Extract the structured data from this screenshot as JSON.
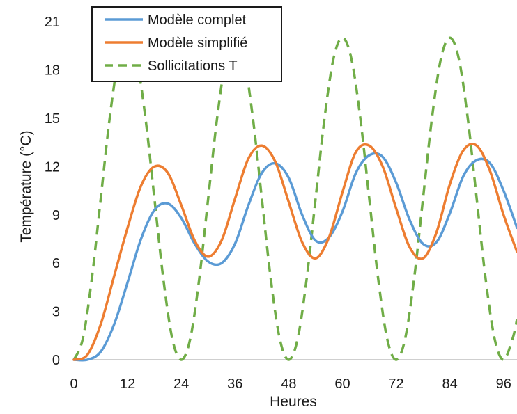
{
  "chart_data": {
    "type": "line",
    "title": "",
    "xlabel": "Heures",
    "ylabel": "Température (°C)",
    "xlim": [
      0,
      99
    ],
    "ylim": [
      0,
      22
    ],
    "xticks": [
      0,
      12,
      24,
      36,
      48,
      60,
      72,
      84,
      96
    ],
    "yticks": [
      0,
      3,
      6,
      9,
      12,
      15,
      18,
      21
    ],
    "grid": false,
    "legend_position": "top-left",
    "series": [
      {
        "name": "Modèle complet",
        "color": "#5b9bd5",
        "dash": "solid",
        "x": [
          0,
          3,
          6,
          9,
          12,
          15,
          18,
          21,
          24,
          27,
          30,
          33,
          36,
          39,
          42,
          45,
          48,
          51,
          54,
          57,
          60,
          63,
          66,
          69,
          72,
          75,
          78,
          81,
          84,
          87,
          90,
          93,
          96,
          99
        ],
        "y": [
          0,
          0,
          0.5,
          2.2,
          4.8,
          7.5,
          9.3,
          9.7,
          8.8,
          7.2,
          6.1,
          6.0,
          7.2,
          9.6,
          11.6,
          12.2,
          11.3,
          9.0,
          7.4,
          7.6,
          9.2,
          11.6,
          12.7,
          12.6,
          11.0,
          8.7,
          7.2,
          7.3,
          9.1,
          11.4,
          12.4,
          12.2,
          10.5,
          8.2
        ]
      },
      {
        "name": "Modèle simplifié",
        "color": "#ed7d31",
        "dash": "solid",
        "x": [
          0,
          3,
          6,
          9,
          12,
          15,
          18,
          21,
          24,
          27,
          30,
          33,
          36,
          39,
          42,
          45,
          48,
          51,
          54,
          57,
          60,
          63,
          66,
          69,
          72,
          75,
          78,
          81,
          84,
          87,
          90,
          93,
          96,
          99
        ],
        "y": [
          0,
          0.3,
          2.2,
          5.2,
          8.2,
          10.8,
          12.0,
          11.6,
          9.6,
          7.4,
          6.4,
          7.4,
          10.0,
          12.5,
          13.3,
          12.3,
          9.8,
          7.3,
          6.3,
          7.6,
          10.4,
          12.9,
          13.3,
          12.0,
          9.4,
          7.0,
          6.3,
          7.9,
          10.9,
          13.0,
          13.3,
          11.7,
          9.0,
          6.7
        ]
      },
      {
        "name": "Sollicitations T",
        "color": "#70ad47",
        "dash": "dashed",
        "x": [
          0,
          2,
          4,
          6,
          8,
          10,
          12,
          14,
          16,
          18,
          20,
          22,
          24,
          26,
          28,
          30,
          32,
          34,
          36,
          38,
          40,
          42,
          44,
          46,
          48,
          50,
          52,
          54,
          56,
          58,
          60,
          62,
          64,
          66,
          68,
          70,
          72,
          74,
          76,
          78,
          80,
          82,
          84,
          86,
          88,
          90,
          92,
          94,
          96,
          98,
          99
        ],
        "y": [
          0,
          1.3,
          5.0,
          10.0,
          15.0,
          18.7,
          20.0,
          18.7,
          15.0,
          10.0,
          5.0,
          1.3,
          0,
          1.3,
          5.0,
          10.0,
          15.0,
          18.7,
          20.0,
          18.7,
          15.0,
          10.0,
          5.0,
          1.3,
          0,
          1.3,
          5.0,
          10.0,
          15.0,
          18.7,
          20.0,
          18.7,
          15.0,
          10.0,
          5.0,
          1.3,
          0,
          1.3,
          5.0,
          10.0,
          15.0,
          18.7,
          20.0,
          18.7,
          15.0,
          10.0,
          5.0,
          1.3,
          0,
          1.3,
          2.5
        ]
      }
    ]
  }
}
